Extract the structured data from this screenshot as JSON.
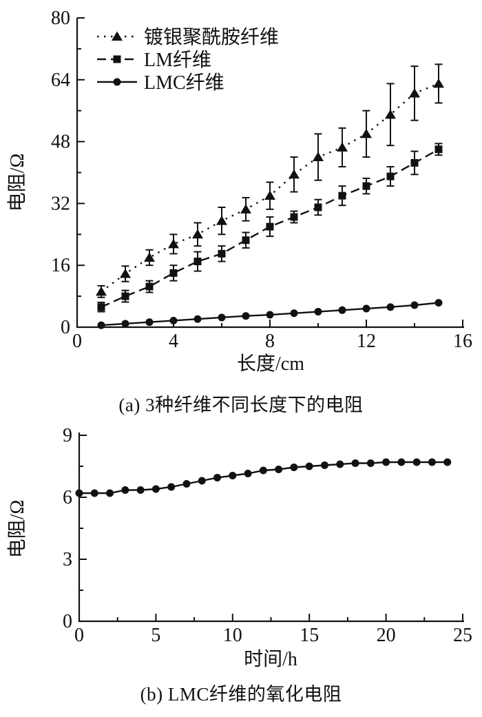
{
  "colors": {
    "ink": "#111111",
    "background": "#ffffff"
  },
  "chart_data": [
    {
      "type": "line",
      "caption": "(a) 3种纤维不同长度下的电阻",
      "xlabel": "长度/cm",
      "ylabel": "电阻/Ω",
      "xlim": [
        0,
        16
      ],
      "ylim": [
        0,
        80
      ],
      "x_major_ticks": [
        0,
        4,
        8,
        12,
        16
      ],
      "x_minor_ticks": [
        2,
        6,
        10,
        14
      ],
      "y_major_ticks": [
        0,
        16,
        32,
        48,
        64,
        80
      ],
      "y_minor_ticks": [
        8,
        24,
        40,
        56,
        72
      ],
      "grid": false,
      "legend_position": "top-left",
      "x": [
        1,
        2,
        3,
        4,
        5,
        6,
        7,
        8,
        9,
        10,
        11,
        12,
        13,
        14,
        15
      ],
      "series": [
        {
          "name": "镀银聚酰胺纤维",
          "marker": "triangle",
          "line": "dotted",
          "values": [
            9.2,
            13.8,
            18,
            21.5,
            24,
            27.5,
            30.5,
            34,
            39.5,
            44,
            46.5,
            50,
            55,
            60.5,
            63
          ],
          "errors": [
            1.5,
            2,
            2,
            2.5,
            3,
            3.5,
            3,
            3.5,
            4.5,
            6,
            5,
            6,
            8,
            7,
            5
          ]
        },
        {
          "name": "LM纤维",
          "marker": "square",
          "line": "dashed",
          "values": [
            5.2,
            8,
            10.5,
            14,
            17,
            19,
            22.5,
            26,
            28.5,
            31,
            34,
            36.5,
            39,
            42.5,
            46
          ],
          "errors": [
            1.2,
            1.5,
            1.5,
            2,
            2.5,
            2,
            2,
            2.5,
            1.5,
            2,
            2.5,
            2,
            2.5,
            3,
            1.5
          ]
        },
        {
          "name": "LMC纤维",
          "marker": "circle",
          "line": "solid",
          "values": [
            0.5,
            0.9,
            1.3,
            1.7,
            2.1,
            2.5,
            2.9,
            3.2,
            3.6,
            4.0,
            4.4,
            4.8,
            5.2,
            5.7,
            6.3
          ],
          "errors": null
        }
      ]
    },
    {
      "type": "line",
      "caption": "(b) LMC纤维的氧化电阻",
      "xlabel": "时间/h",
      "ylabel": "电阻/Ω",
      "xlim": [
        0,
        25
      ],
      "ylim": [
        0,
        9
      ],
      "x_major_ticks": [
        0,
        5,
        10,
        15,
        20,
        25
      ],
      "x_minor_ticks": [
        2.5,
        7.5,
        12.5,
        17.5,
        22.5
      ],
      "y_major_ticks": [
        0,
        3,
        6,
        9
      ],
      "y_minor_ticks": [
        1.5,
        4.5,
        7.5
      ],
      "grid": false,
      "legend_position": "none",
      "x": [
        0,
        1,
        2,
        3,
        4,
        5,
        6,
        7,
        8,
        9,
        10,
        11,
        12,
        13,
        14,
        15,
        16,
        17,
        18,
        19,
        20,
        21,
        22,
        23,
        24
      ],
      "series": [
        {
          "name": "LMC纤维",
          "marker": "circle",
          "line": "solid",
          "values": [
            6.2,
            6.2,
            6.2,
            6.35,
            6.35,
            6.4,
            6.5,
            6.65,
            6.8,
            6.95,
            7.05,
            7.15,
            7.3,
            7.35,
            7.45,
            7.5,
            7.55,
            7.6,
            7.65,
            7.65,
            7.7,
            7.7,
            7.7,
            7.7,
            7.7
          ],
          "errors": null
        }
      ]
    }
  ]
}
